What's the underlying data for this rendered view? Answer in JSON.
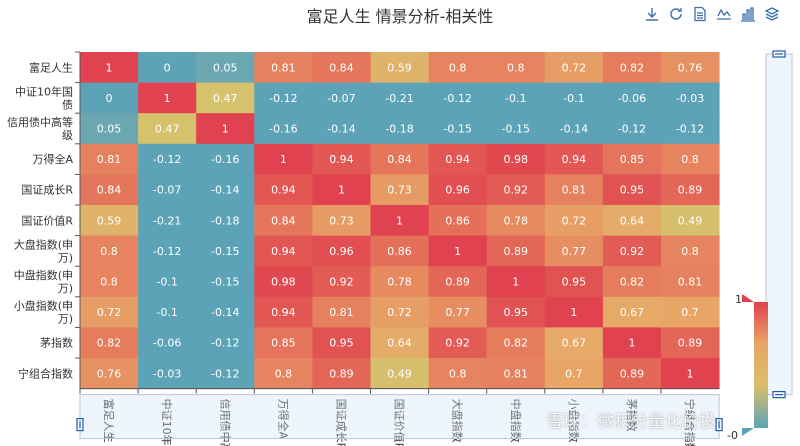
{
  "title": "富足人生 情景分析-相关性",
  "watermark": "雪球：微积分量化价投",
  "toolbox": [
    {
      "name": "download-icon",
      "label": "下载"
    },
    {
      "name": "refresh-icon",
      "label": "还原"
    },
    {
      "name": "data-view-icon",
      "label": "数据视图"
    },
    {
      "name": "line-chart-icon",
      "label": "折线图"
    },
    {
      "name": "bar-chart-icon",
      "label": "柱状图"
    },
    {
      "name": "stack-icon",
      "label": "堆叠"
    }
  ],
  "visual_map": {
    "max_label": "1",
    "min_label": "-0",
    "colors": [
      "#e0424f",
      "#e8a566",
      "#d9bf6a",
      "#5da3b8"
    ]
  },
  "chart_data": {
    "type": "heatmap",
    "title": "富足人生 情景分析-相关性",
    "categories": [
      "富足人生",
      "中证10年国债",
      "信用债中高等级",
      "万得全A",
      "国证成长R",
      "国证价值R",
      "大盘指数(申万)",
      "中盘指数(申万)",
      "小盘指数(申万)",
      "茅指数",
      "宁组合指数"
    ],
    "y_labels": [
      [
        "富足人生"
      ],
      [
        "中证10年国",
        "债"
      ],
      [
        "信用债中高等",
        "级"
      ],
      [
        "万得全A"
      ],
      [
        "国证成长R"
      ],
      [
        "国证价值R"
      ],
      [
        "大盘指数(申",
        "万)"
      ],
      [
        "中盘指数(申",
        "万)"
      ],
      [
        "小盘指数(申",
        "万)"
      ],
      [
        "茅指数"
      ],
      [
        "宁组合指数"
      ]
    ],
    "x_labels": [
      "富足人生",
      "中证10年国",
      "信用债中高",
      "万得全A",
      "国证成长R",
      "国证价值R",
      "大盘指数",
      "中盘指数",
      "小盘指数",
      "茅指数",
      "宁组合指数"
    ],
    "values": [
      [
        "1",
        "0",
        "0.05",
        "0.81",
        "0.84",
        "0.59",
        "0.8",
        "0.8",
        "0.72",
        "0.82",
        "0.76"
      ],
      [
        "0",
        "1",
        "0.47",
        "-0.12",
        "-0.07",
        "-0.21",
        "-0.12",
        "-0.1",
        "-0.1",
        "-0.06",
        "-0.03"
      ],
      [
        "0.05",
        "0.47",
        "1",
        "-0.16",
        "-0.14",
        "-0.18",
        "-0.15",
        "-0.15",
        "-0.14",
        "-0.12",
        "-0.12"
      ],
      [
        "0.81",
        "-0.12",
        "-0.16",
        "1",
        "0.94",
        "0.84",
        "0.94",
        "0.98",
        "0.94",
        "0.85",
        "0.8"
      ],
      [
        "0.84",
        "-0.07",
        "-0.14",
        "0.94",
        "1",
        "0.73",
        "0.96",
        "0.92",
        "0.81",
        "0.95",
        "0.89"
      ],
      [
        "0.59",
        "-0.21",
        "-0.18",
        "0.84",
        "0.73",
        "1",
        "0.86",
        "0.78",
        "0.72",
        "0.64",
        "0.49"
      ],
      [
        "0.8",
        "-0.12",
        "-0.15",
        "0.94",
        "0.96",
        "0.86",
        "1",
        "0.89",
        "0.77",
        "0.92",
        "0.8"
      ],
      [
        "0.8",
        "-0.1",
        "-0.15",
        "0.98",
        "0.92",
        "0.78",
        "0.89",
        "1",
        "0.95",
        "0.82",
        "0.81"
      ],
      [
        "0.72",
        "-0.1",
        "-0.14",
        "0.94",
        "0.81",
        "0.72",
        "0.77",
        "0.95",
        "1",
        "0.67",
        "0.7"
      ],
      [
        "0.82",
        "-0.06",
        "-0.12",
        "0.85",
        "0.95",
        "0.64",
        "0.92",
        "0.82",
        "0.67",
        "1",
        "0.89"
      ],
      [
        "0.76",
        "-0.03",
        "-0.12",
        "0.8",
        "0.89",
        "0.49",
        "0.8",
        "0.81",
        "0.7",
        "0.89",
        "1"
      ]
    ],
    "value_range": [
      0,
      1
    ]
  }
}
